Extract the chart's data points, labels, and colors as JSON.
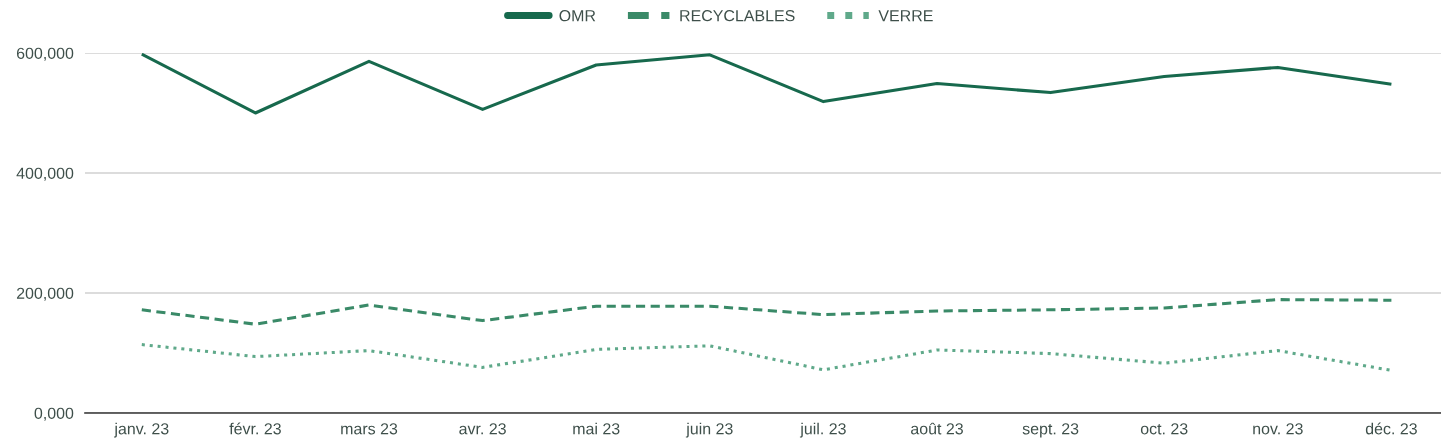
{
  "chart_data": {
    "type": "line",
    "categories": [
      "janv. 23",
      "févr. 23",
      "mars 23",
      "avr. 23",
      "mai 23",
      "juin 23",
      "juil. 23",
      "août 23",
      "sept. 23",
      "oct. 23",
      "nov. 23",
      "déc. 23"
    ],
    "series": [
      {
        "name": "OMR",
        "color": "#17694d",
        "line_style": "solid",
        "values": [
          598000,
          500000,
          586000,
          506000,
          580000,
          597000,
          519000,
          549000,
          534000,
          561000,
          576000,
          548000
        ]
      },
      {
        "name": "RECYCLABLES",
        "color": "#3a8a68",
        "line_style": "dashed",
        "values": [
          172000,
          148000,
          180000,
          154000,
          178000,
          178000,
          164000,
          170000,
          172000,
          175000,
          189000,
          188000
        ]
      },
      {
        "name": "VERRE",
        "color": "#5fa98a",
        "line_style": "dotted",
        "values": [
          114000,
          94000,
          104000,
          76000,
          106000,
          112000,
          72000,
          105000,
          99000,
          83000,
          104000,
          71000
        ]
      }
    ],
    "ylim": [
      0,
      600000
    ],
    "yticks": [
      {
        "value": 0,
        "label": "0,000"
      },
      {
        "value": 200000,
        "label": "200,000"
      },
      {
        "value": 400000,
        "label": "400,000"
      },
      {
        "value": 600000,
        "label": "600,000"
      }
    ],
    "grid": "y",
    "legend": "top",
    "marker": "none"
  }
}
